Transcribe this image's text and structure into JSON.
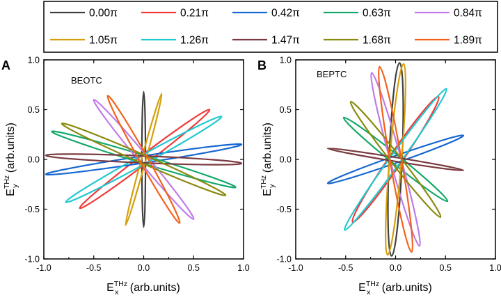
{
  "legend": {
    "entries": [
      {
        "label": "0.00π",
        "color": "#404040"
      },
      {
        "label": "0.21π",
        "color": "#f03a3a"
      },
      {
        "label": "0.42π",
        "color": "#1466d2"
      },
      {
        "label": "0.63π",
        "color": "#14a86a"
      },
      {
        "label": "0.84π",
        "color": "#c07be8"
      },
      {
        "label": "1.05π",
        "color": "#d4a010"
      },
      {
        "label": "1.26π",
        "color": "#20c8d0"
      },
      {
        "label": "1.47π",
        "color": "#7a3a40"
      },
      {
        "label": "1.68π",
        "color": "#8a8a10"
      },
      {
        "label": "1.89π",
        "color": "#f2621a"
      }
    ]
  },
  "chart_data": [
    {
      "type": "line",
      "panel_label": "A",
      "title": "BEOTC",
      "xlabel": "E_x^THz (arb.units)",
      "ylabel": "E_y^THz (arb.units)",
      "xlim": [
        -1.0,
        1.0
      ],
      "ylim": [
        -1.0,
        1.0
      ],
      "xticks": [
        "-1.0",
        "-0.5",
        "0.0",
        "0.5",
        "1.0"
      ],
      "yticks": [
        "-1.0",
        "-0.5",
        "0.0",
        "0.5",
        "1.0"
      ],
      "series": [
        {
          "name": "0.00π",
          "tips": [
            [
              0.0,
              0.68
            ],
            [
              0.0,
              -0.68
            ]
          ],
          "minor_half_width": 0.018
        },
        {
          "name": "0.21π",
          "tips": [
            [
              0.66,
              0.5
            ],
            [
              -0.64,
              -0.49
            ]
          ],
          "minor_half_width": 0.045
        },
        {
          "name": "0.42π",
          "tips": [
            [
              0.98,
              0.15
            ],
            [
              -0.98,
              -0.15
            ]
          ],
          "minor_half_width": 0.035
        },
        {
          "name": "0.63π",
          "tips": [
            [
              -0.92,
              0.28
            ],
            [
              0.92,
              -0.28
            ]
          ],
          "minor_half_width": 0.04
        },
        {
          "name": "0.84π",
          "tips": [
            [
              -0.5,
              0.6
            ],
            [
              0.5,
              -0.6
            ]
          ],
          "minor_half_width": 0.045
        },
        {
          "name": "1.05π",
          "tips": [
            [
              0.18,
              0.66
            ],
            [
              -0.18,
              -0.66
            ]
          ],
          "minor_half_width": 0.022
        },
        {
          "name": "1.26π",
          "tips": [
            [
              0.78,
              0.43
            ],
            [
              -0.78,
              -0.43
            ]
          ],
          "minor_half_width": 0.045
        },
        {
          "name": "1.47π",
          "tips": [
            [
              -0.98,
              0.04
            ],
            [
              0.98,
              -0.04
            ]
          ],
          "minor_half_width": 0.035
        },
        {
          "name": "1.68π",
          "tips": [
            [
              -0.82,
              0.36
            ],
            [
              0.82,
              -0.36
            ]
          ],
          "minor_half_width": 0.042
        },
        {
          "name": "1.89π",
          "tips": [
            [
              -0.36,
              0.64
            ],
            [
              0.36,
              -0.64
            ]
          ],
          "minor_half_width": 0.042
        }
      ]
    },
    {
      "type": "line",
      "panel_label": "B",
      "title": "BEPTC",
      "xlabel": "E_x^THz (arb.units)",
      "ylabel": "E_y^THz (arb.units)",
      "xlim": [
        -1.0,
        1.0
      ],
      "ylim": [
        -1.0,
        1.0
      ],
      "xticks": [
        "-1.0",
        "-0.5",
        "0.0",
        "0.5",
        "1.0"
      ],
      "yticks": [
        "-1.0",
        "-0.5",
        "0.0",
        "0.5",
        "1.0"
      ],
      "series": [
        {
          "name": "0.00π",
          "tips": [
            [
              0.04,
              0.97
            ],
            [
              -0.04,
              -0.97
            ]
          ],
          "minor_half_width": 0.065
        },
        {
          "name": "0.21π",
          "tips": [
            [
              0.43,
              0.63
            ],
            [
              -0.43,
              -0.63
            ]
          ],
          "minor_half_width": 0.065
        },
        {
          "name": "0.42π",
          "tips": [
            [
              0.68,
              0.24
            ],
            [
              -0.68,
              -0.24
            ]
          ],
          "minor_half_width": 0.035
        },
        {
          "name": "0.63π",
          "tips": [
            [
              -0.52,
              0.42
            ],
            [
              0.52,
              -0.42
            ]
          ],
          "minor_half_width": 0.045
        },
        {
          "name": "0.84π",
          "tips": [
            [
              -0.24,
              0.87
            ],
            [
              0.24,
              -0.87
            ]
          ],
          "minor_half_width": 0.055
        },
        {
          "name": "1.05π",
          "tips": [
            [
              0.08,
              0.96
            ],
            [
              -0.08,
              -0.96
            ]
          ],
          "minor_half_width": 0.06
        },
        {
          "name": "1.26π",
          "tips": [
            [
              0.51,
              0.71
            ],
            [
              -0.51,
              -0.71
            ]
          ],
          "minor_half_width": 0.055
        },
        {
          "name": "1.47π",
          "tips": [
            [
              -0.68,
              0.11
            ],
            [
              0.68,
              -0.11
            ]
          ],
          "minor_half_width": 0.02
        },
        {
          "name": "1.68π",
          "tips": [
            [
              -0.45,
              0.58
            ],
            [
              0.45,
              -0.58
            ]
          ],
          "minor_half_width": 0.05
        },
        {
          "name": "1.89π",
          "tips": [
            [
              -0.16,
              0.93
            ],
            [
              0.16,
              -0.93
            ]
          ],
          "minor_half_width": 0.058
        }
      ]
    }
  ]
}
